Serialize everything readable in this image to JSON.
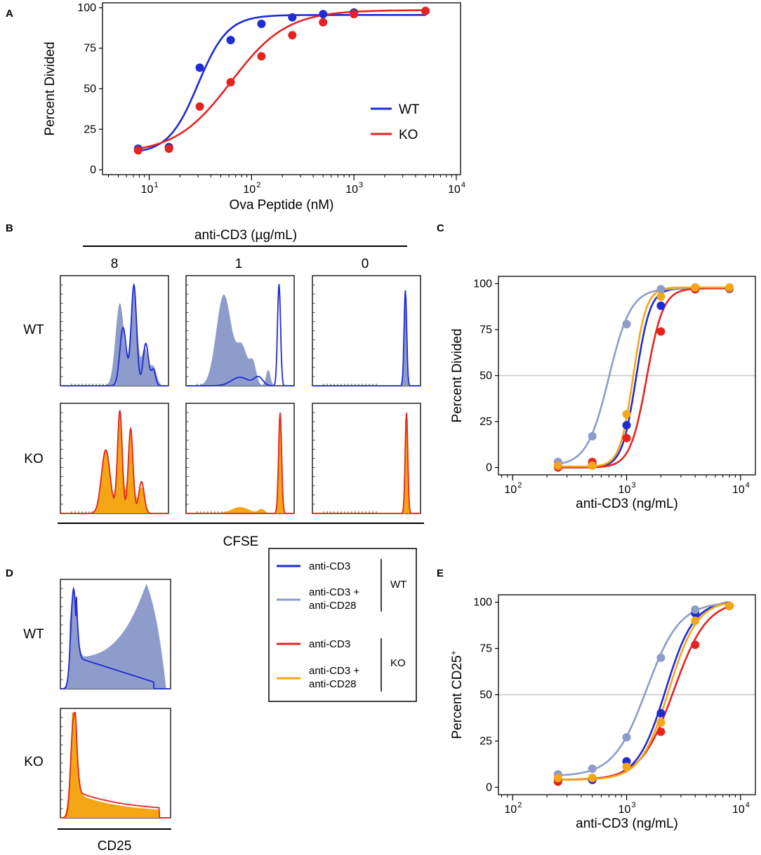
{
  "panels": {
    "A": "A",
    "B": "B",
    "C": "C",
    "D": "D",
    "E": "E"
  },
  "colors": {
    "wt_cd3": "#1f2bd6",
    "wt_cd3_cd28": "#8e9ccb",
    "ko_cd3": "#e52420",
    "ko_cd3_cd28": "#f5a614"
  },
  "histograms": {
    "header": "anti-CD3 (µg/mL)",
    "columns": [
      "8",
      "1",
      "0"
    ],
    "rows": [
      "WT",
      "KO"
    ],
    "xlabel": "CFSE",
    "d_rows": [
      "WT",
      "KO"
    ],
    "d_xlabel": "CD25"
  },
  "legend": {
    "items": [
      {
        "line1": "anti-CD3",
        "line2": ""
      },
      {
        "line1": "anti-CD3 +",
        "line2": "anti-CD28"
      },
      {
        "line1": "anti-CD3",
        "line2": ""
      },
      {
        "line1": "anti-CD3 +",
        "line2": "anti-CD28"
      }
    ],
    "group_wt": "WT",
    "group_ko": "KO"
  },
  "chart_data": [
    {
      "id": "A",
      "type": "scatter",
      "title": "",
      "xlabel": "Ova Peptide (nM)",
      "ylabel": "Percent Divided",
      "xscale": "log",
      "xlim": [
        3.5,
        11000
      ],
      "ylim": [
        -3,
        103
      ],
      "yticks": [
        0,
        25,
        50,
        75,
        100
      ],
      "ytick_labels": [
        "0",
        "25",
        "50",
        "75",
        "100"
      ],
      "xticks": [
        10,
        100,
        1000,
        10000
      ],
      "xtick_labels": [
        "10",
        "10",
        "10",
        "10"
      ],
      "xtick_exps": [
        "1",
        "2",
        "3",
        "4"
      ],
      "legend_position": "right",
      "series": [
        {
          "name": "WT",
          "x": [
            7.8,
            15.6,
            31.2,
            62.5,
            125,
            250,
            500,
            1000,
            5000
          ],
          "y": [
            13,
            14,
            63,
            80,
            90,
            94,
            96,
            97,
            98
          ],
          "fit": {
            "bottom": 10,
            "top": 95.5,
            "ec50": 30,
            "hill": 3.0
          }
        },
        {
          "name": "KO",
          "x": [
            7.8,
            15.6,
            31.2,
            62.5,
            125,
            250,
            500,
            1000,
            5000
          ],
          "y": [
            12,
            13,
            39,
            54,
            70,
            83,
            91,
            96,
            98
          ],
          "fit": {
            "bottom": 10,
            "top": 98.5,
            "ec50": 63,
            "hill": 1.6
          }
        }
      ]
    },
    {
      "id": "C",
      "type": "scatter",
      "title": "",
      "xlabel": "anti-CD3 (ng/mL)",
      "ylabel": "Percent Divided",
      "xscale": "log",
      "xlim": [
        75,
        13500
      ],
      "ylim": [
        -4,
        104
      ],
      "yticks": [
        0,
        25,
        50,
        75,
        100
      ],
      "ytick_labels": [
        "0",
        "25",
        "50",
        "75",
        "100"
      ],
      "xticks": [
        100,
        1000,
        10000
      ],
      "xtick_labels": [
        "10",
        "10",
        "10"
      ],
      "xtick_exps": [
        "2",
        "3",
        "4"
      ],
      "hline": 50,
      "series": [
        {
          "name": "WT anti-CD3",
          "x": [
            250,
            500,
            1000,
            2000,
            4000,
            8000
          ],
          "y": [
            0.5,
            2,
            23,
            88,
            97,
            97.5
          ],
          "fit": {
            "bottom": 0,
            "top": 97.5,
            "ec50": 1210,
            "hill": 7.0
          }
        },
        {
          "name": "WT anti-CD3 + anti-CD28",
          "x": [
            250,
            500,
            1000,
            2000,
            4000,
            8000
          ],
          "y": [
            3,
            17,
            78,
            97,
            97.5,
            97
          ],
          "fit": {
            "bottom": 1,
            "top": 97.5,
            "ec50": 700,
            "hill": 4.5
          }
        },
        {
          "name": "KO anti-CD3",
          "x": [
            250,
            500,
            1000,
            2000,
            4000,
            8000
          ],
          "y": [
            0,
            3,
            16,
            74,
            97,
            97.5
          ],
          "fit": {
            "bottom": 0,
            "top": 97.5,
            "ec50": 1500,
            "hill": 6.0
          }
        },
        {
          "name": "KO anti-CD3 + anti-CD28",
          "x": [
            250,
            500,
            1000,
            2000,
            4000,
            8000
          ],
          "y": [
            1,
            1,
            29,
            93,
            98,
            98
          ],
          "fit": {
            "bottom": 0.5,
            "top": 98,
            "ec50": 1140,
            "hill": 7.5
          }
        }
      ]
    },
    {
      "id": "E",
      "type": "scatter",
      "title": "",
      "xlabel": "anti-CD3 (ng/mL)",
      "ylabel": "Percent CD25",
      "ylabel_sup": "+",
      "xscale": "log",
      "xlim": [
        75,
        13500
      ],
      "ylim": [
        -4,
        104
      ],
      "yticks": [
        0,
        25,
        50,
        75,
        100
      ],
      "ytick_labels": [
        "0",
        "25",
        "50",
        "75",
        "100"
      ],
      "xticks": [
        100,
        1000,
        10000
      ],
      "xtick_labels": [
        "10",
        "10",
        "10"
      ],
      "xtick_exps": [
        "2",
        "3",
        "4"
      ],
      "hline": 50,
      "series": [
        {
          "name": "WT anti-CD3",
          "x": [
            250,
            500,
            1000,
            2000,
            4000,
            8000
          ],
          "y": [
            4,
            4,
            14,
            40,
            94,
            98
          ],
          "fit": {
            "bottom": 4,
            "top": 101,
            "ec50": 2200,
            "hill": 3.5
          }
        },
        {
          "name": "WT anti-CD3 + anti-CD28",
          "x": [
            250,
            500,
            1000,
            2000,
            4000,
            8000
          ],
          "y": [
            7,
            10,
            27,
            70,
            96,
            98
          ],
          "fit": {
            "bottom": 6,
            "top": 100,
            "ec50": 1500,
            "hill": 3.0
          }
        },
        {
          "name": "KO anti-CD3",
          "x": [
            250,
            500,
            1000,
            2000,
            4000,
            8000
          ],
          "y": [
            3,
            5,
            11,
            30,
            77,
            98
          ],
          "fit": {
            "bottom": 4,
            "top": 101,
            "ec50": 2600,
            "hill": 3.0
          }
        },
        {
          "name": "KO anti-CD3 + anti-CD28",
          "x": [
            250,
            500,
            1000,
            2000,
            4000,
            8000
          ],
          "y": [
            5,
            5,
            11,
            35,
            90,
            98
          ],
          "fit": {
            "bottom": 4,
            "top": 101,
            "ec50": 2350,
            "hill": 3.5
          }
        }
      ]
    }
  ]
}
